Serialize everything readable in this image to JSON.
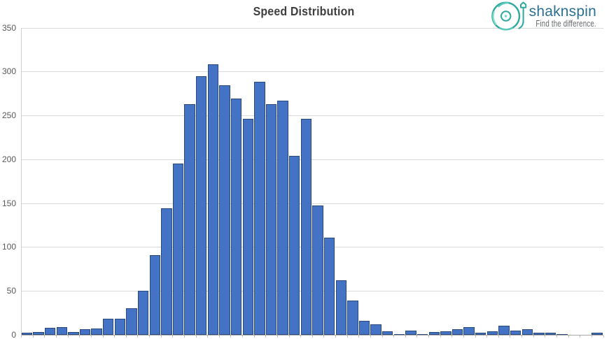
{
  "header": {
    "title": "Speed Distribution"
  },
  "logo": {
    "brand": "shaknspin",
    "tagline": "Find the difference.",
    "icon": "record-player-icon",
    "brand_color": "#2a7090",
    "tagline_color": "#66696c",
    "icon_color": "#2fa99e",
    "icon_highlight": "#7fdcca"
  },
  "chart_data": {
    "type": "bar",
    "title": "Speed Distribution",
    "xlabel": "",
    "ylabel": "",
    "categories": [],
    "values": [
      2,
      3,
      8,
      9,
      3,
      6,
      7,
      18,
      18,
      30,
      50,
      91,
      144,
      195,
      263,
      295,
      308,
      284,
      269,
      246,
      288,
      263,
      267,
      204,
      246,
      147,
      111,
      62,
      39,
      16,
      12,
      4,
      1,
      5,
      1,
      3,
      4,
      6,
      9,
      2,
      4,
      10,
      5,
      6,
      2,
      2,
      1,
      0,
      0,
      2
    ],
    "y_ticks": [
      0,
      50,
      100,
      150,
      200,
      250,
      300,
      350
    ],
    "ylim": [
      0,
      350
    ],
    "x_tick_labels_visible": false,
    "grid": "horizontal",
    "legend": "none",
    "bar_color": "#4472c4",
    "bar_border_color": "#2a4a7d",
    "gridline_color": "#d9d9d9",
    "axis_label_color": "#595959"
  }
}
